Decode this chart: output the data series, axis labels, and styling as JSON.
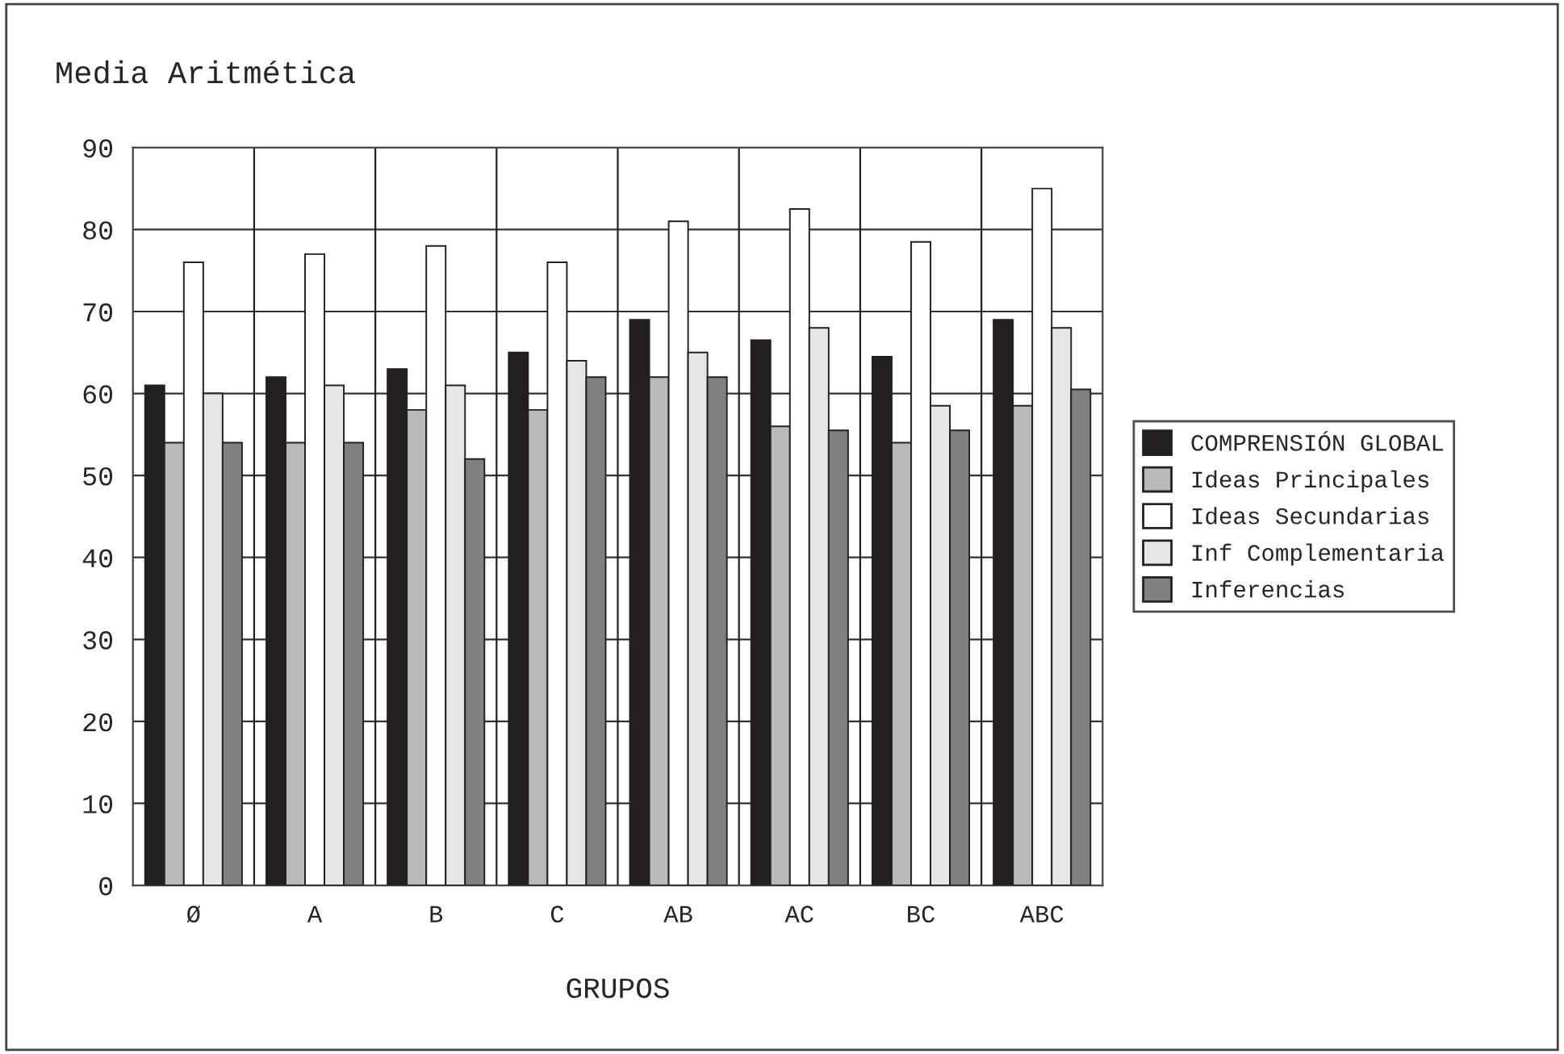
{
  "chart_data": {
    "type": "bar",
    "title": "Media Aritmética",
    "xlabel": "GRUPOS",
    "categories": [
      "Ø",
      "A",
      "B",
      "C",
      "AB",
      "AC",
      "BC",
      "ABC"
    ],
    "series": [
      {
        "name": "COMPRENSIÓN GLOBAL",
        "color": "#231f20",
        "values": [
          61,
          62,
          63,
          65,
          69,
          66.5,
          64.5,
          69
        ]
      },
      {
        "name": "Ideas Principales",
        "color": "#b8b9bb",
        "values": [
          54,
          54,
          58,
          58,
          62,
          56,
          54,
          58.5
        ]
      },
      {
        "name": "Ideas Secundarias",
        "color": "#ffffff",
        "values": [
          76,
          77,
          78,
          76,
          81,
          82.5,
          78.5,
          85
        ]
      },
      {
        "name": "Inf Complementaria",
        "color": "#e6e6e7",
        "values": [
          60,
          61,
          61,
          64,
          65,
          68,
          58.5,
          68
        ]
      },
      {
        "name": "Inferencias",
        "color": "#808082",
        "values": [
          54,
          54,
          52,
          62,
          62,
          55.5,
          55.5,
          60.5
        ]
      }
    ],
    "ylim": [
      0,
      90
    ],
    "yticks": [
      0,
      10,
      20,
      30,
      40,
      50,
      60,
      70,
      80,
      90
    ],
    "grid": "y",
    "legend": "right"
  }
}
